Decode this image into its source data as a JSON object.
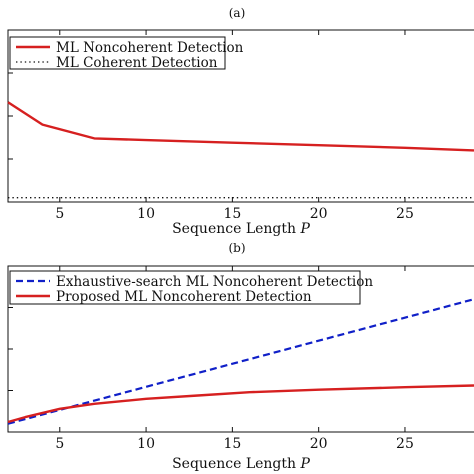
{
  "chart_data": [
    {
      "type": "line",
      "caption": "(a)",
      "xlabel": "Sequence Length P",
      "ylabel": "",
      "xlim": [
        2,
        29
      ],
      "ylim": [
        0,
        1
      ],
      "xticks": [
        5,
        10,
        15,
        20,
        25
      ],
      "grid": false,
      "legend_position": "top-left",
      "series": [
        {
          "name": "ML Noncoherent Detection",
          "style": "solid",
          "color": "#d62020",
          "x": [
            2,
            4,
            7,
            10,
            15,
            20,
            25,
            29
          ],
          "y": [
            0.58,
            0.45,
            0.37,
            0.36,
            0.345,
            0.33,
            0.315,
            0.3
          ]
        },
        {
          "name": "ML Coherent Detection",
          "style": "dotted",
          "color": "#111111",
          "x": [
            2,
            29
          ],
          "y": [
            0.025,
            0.025
          ]
        }
      ]
    },
    {
      "type": "line",
      "caption": "(b)",
      "xlabel": "Sequence Length P",
      "ylabel": "",
      "xlim": [
        2,
        29
      ],
      "ylim": [
        0,
        1
      ],
      "xticks": [
        5,
        10,
        15,
        20,
        25
      ],
      "grid": false,
      "legend_position": "top-left",
      "series": [
        {
          "name": "Exhaustive-search ML Noncoherent Detection",
          "style": "dashed",
          "color": "#1020c8",
          "x": [
            2,
            29
          ],
          "y": [
            0.05,
            0.8
          ]
        },
        {
          "name": "Proposed ML Noncoherent Detection",
          "style": "solid",
          "color": "#d62020",
          "x": [
            2,
            3,
            5,
            7,
            10,
            13,
            16,
            20,
            25,
            29
          ],
          "y": [
            0.06,
            0.09,
            0.14,
            0.17,
            0.2,
            0.22,
            0.24,
            0.255,
            0.27,
            0.28
          ]
        }
      ]
    }
  ]
}
